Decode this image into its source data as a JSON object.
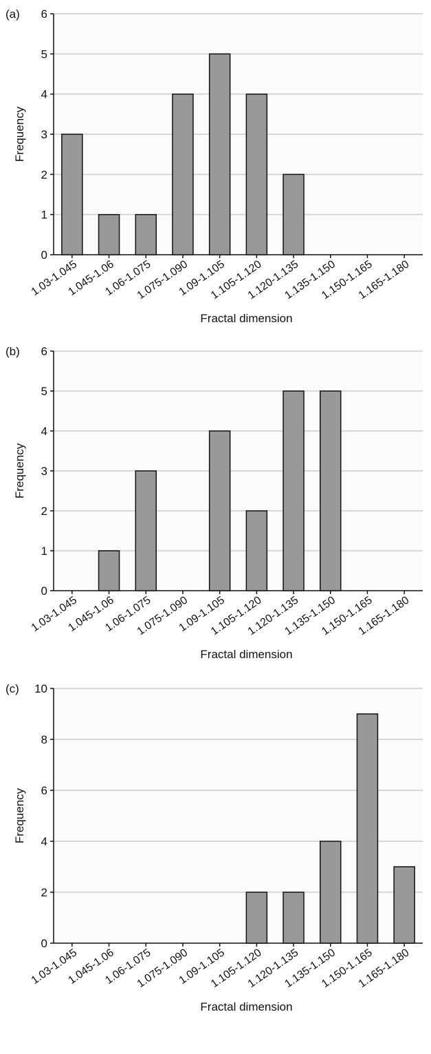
{
  "chart_data": [
    {
      "panel_label": "(a)",
      "type": "bar",
      "categories": [
        "1.03-1.045",
        "1.045-1.06",
        "1.06-1.075",
        "1.075-1.090",
        "1.09-1.105",
        "1.105-1.120",
        "1.120-1.135",
        "1.135-1.150",
        "1.150-1.165",
        "1.165-1.180"
      ],
      "values": [
        3,
        1,
        1,
        4,
        5,
        4,
        2,
        0,
        0,
        0
      ],
      "xlabel": "Fractal dimension",
      "ylabel": "Frequency",
      "ylim": [
        0,
        6
      ],
      "yticks": [
        0,
        1,
        2,
        3,
        4,
        5,
        6
      ],
      "grid": true
    },
    {
      "panel_label": "(b)",
      "type": "bar",
      "categories": [
        "1.03-1.045",
        "1.045-1.06",
        "1.06-1.075",
        "1.075-1.090",
        "1.09-1.105",
        "1.105-1.120",
        "1.120-1.135",
        "1.135-1.150",
        "1.150-1.165",
        "1.165-1.180"
      ],
      "values": [
        0,
        1,
        3,
        0,
        4,
        2,
        5,
        5,
        0,
        0
      ],
      "xlabel": "Fractal dimension",
      "ylabel": "Frequency",
      "ylim": [
        0,
        6
      ],
      "yticks": [
        0,
        1,
        2,
        3,
        4,
        5,
        6
      ],
      "grid": true
    },
    {
      "panel_label": "(c)",
      "type": "bar",
      "categories": [
        "1.03-1.045",
        "1.045-1.06",
        "1.06-1.075",
        "1.075-1.090",
        "1.09-1.105",
        "1.105-1.120",
        "1.120-1.135",
        "1.135-1.150",
        "1.150-1.165",
        "1.165-1.180"
      ],
      "values": [
        0,
        0,
        0,
        0,
        0,
        2,
        2,
        4,
        9,
        3
      ],
      "xlabel": "Fractal dimension",
      "ylabel": "Frequency",
      "ylim": [
        0,
        10
      ],
      "yticks": [
        0,
        2,
        4,
        6,
        8,
        10
      ],
      "grid": true
    }
  ],
  "colors": {
    "bar_fill": "#999999",
    "bar_stroke": "#111111",
    "plot_bg": "#fbfbfb",
    "grid": "#cccccc",
    "axis": "#111111"
  }
}
